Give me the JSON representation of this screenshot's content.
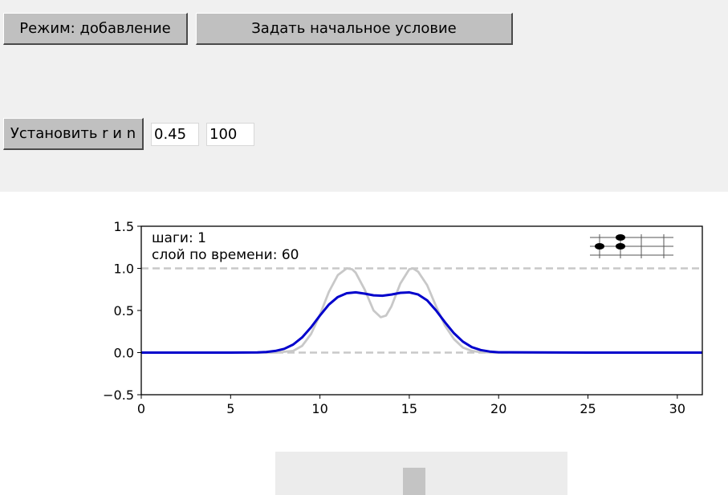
{
  "toolbar": {
    "mode_label": "Режим: добавление",
    "init_label": "Задать начальное условие",
    "set_label": "Установить r и n"
  },
  "params": {
    "r_value": "0.45",
    "n_value": "100"
  },
  "plot": {
    "annotation_steps": "шаги: 1",
    "annotation_layer": "слой по времени: 60",
    "icon": "grid-points-icon"
  },
  "slider": {
    "position_fraction": 0.48
  },
  "chart_data": {
    "type": "line",
    "title": "",
    "xlabel": "",
    "ylabel": "",
    "xlim": [
      0,
      31.4
    ],
    "ylim": [
      -0.5,
      1.5
    ],
    "xticks": [
      0,
      5,
      10,
      15,
      20,
      25,
      30
    ],
    "yticks": [
      -0.5,
      0.0,
      0.5,
      1.0,
      1.5
    ],
    "xtick_labels": [
      "0",
      "5",
      "10",
      "15",
      "20",
      "25",
      "30"
    ],
    "ytick_labels": [
      "−0.5",
      "0.0",
      "0.5",
      "1.0",
      "1.5"
    ],
    "grid": false,
    "reference_lines": [
      0.0,
      1.0
    ],
    "series": [
      {
        "color": "#c8c8c8",
        "x": [
          0,
          5,
          7.5,
          8.5,
          9,
          9.5,
          10,
          10.5,
          11,
          11.5,
          11.8,
          12,
          12.5,
          13,
          13.4,
          13.7,
          14,
          14.5,
          15,
          15.2,
          15.5,
          16,
          16.5,
          17,
          17.5,
          18,
          18.5,
          19,
          20,
          25,
          31.4
        ],
        "y": [
          0,
          0,
          0,
          0.02,
          0.08,
          0.22,
          0.45,
          0.72,
          0.92,
          1.0,
          0.99,
          0.95,
          0.75,
          0.5,
          0.42,
          0.44,
          0.55,
          0.82,
          0.99,
          1.0,
          0.96,
          0.8,
          0.55,
          0.32,
          0.16,
          0.06,
          0.02,
          0.005,
          0,
          0,
          0
        ]
      },
      {
        "color": "#0000cc",
        "x": [
          0,
          5,
          6.5,
          7,
          7.5,
          8,
          8.5,
          9,
          9.5,
          10,
          10.5,
          11,
          11.5,
          12,
          12.5,
          13,
          13.5,
          14,
          14.5,
          15,
          15.5,
          16,
          16.5,
          17,
          17.5,
          18,
          18.5,
          19,
          19.5,
          20,
          25,
          31.4
        ],
        "y": [
          0,
          0,
          0.003,
          0.008,
          0.02,
          0.045,
          0.095,
          0.18,
          0.3,
          0.44,
          0.57,
          0.66,
          0.705,
          0.715,
          0.7,
          0.68,
          0.675,
          0.69,
          0.71,
          0.715,
          0.69,
          0.62,
          0.5,
          0.36,
          0.23,
          0.13,
          0.065,
          0.03,
          0.012,
          0.004,
          0,
          0
        ]
      }
    ]
  }
}
